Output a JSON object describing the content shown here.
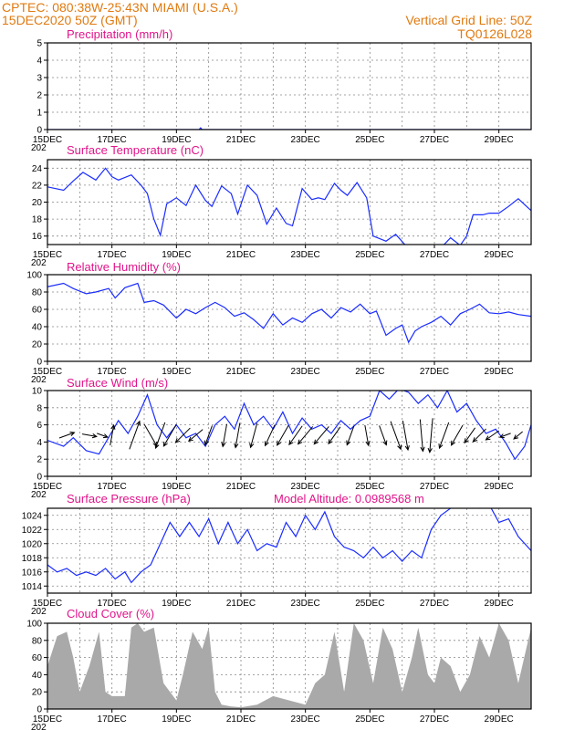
{
  "header": {
    "line1_left": "CPTEC:   080:38W-25:43N   MIAMI (U.S.A.)",
    "line2_left": "15DEC2020 50Z (GMT)",
    "line1_right": "Vertical Grid Line: 50Z",
    "line2_right": "TQ0126L028"
  },
  "colors": {
    "header": "#e07a10",
    "panel_title": "#e0158a",
    "series": "#1a2cff",
    "cloud_fill": "#a9a9a9",
    "wind_arrow": "#000000"
  },
  "x_axis": {
    "tick_labels": [
      "15DEC",
      "17DEC",
      "19DEC",
      "21DEC",
      "23DEC",
      "25DEC",
      "27DEC",
      "29DEC"
    ],
    "range_days": [
      0,
      15
    ],
    "grid": "dotted every day",
    "truncated_year_label": "202"
  },
  "chart_data": [
    {
      "id": "precip",
      "type": "line",
      "title": "Precipitation (mm/h)",
      "ylim": [
        0,
        5
      ],
      "yticks": [
        0,
        1,
        2,
        3,
        4,
        5
      ],
      "x": [
        0,
        4.7,
        4.75,
        4.8,
        15
      ],
      "y": [
        0,
        0,
        0.1,
        0,
        0
      ]
    },
    {
      "id": "temp",
      "type": "line",
      "title": "Surface Temperature (nC)",
      "ylim": [
        15,
        25
      ],
      "yticks": [
        16,
        18,
        20,
        22,
        24
      ],
      "x": [
        0,
        0.5,
        0.8,
        1.1,
        1.5,
        1.8,
        2.0,
        2.2,
        2.6,
        2.9,
        3.1,
        3.3,
        3.5,
        3.7,
        4.0,
        4.3,
        4.6,
        4.9,
        5.1,
        5.4,
        5.7,
        5.9,
        6.2,
        6.5,
        6.8,
        7.1,
        7.4,
        7.6,
        7.9,
        8.2,
        8.4,
        8.6,
        8.9,
        9.1,
        9.3,
        9.6,
        9.9,
        10.1,
        10.5,
        10.8,
        11.2,
        11.5,
        11.9,
        12.2,
        12.5,
        12.8,
        13.0,
        13.2,
        13.5,
        13.7,
        14.0,
        14.3,
        14.6,
        15.0
      ],
      "y": [
        21.8,
        21.4,
        22.5,
        23.5,
        22.6,
        24.0,
        23.0,
        22.6,
        23.2,
        22.0,
        21.0,
        18.0,
        16.1,
        19.8,
        20.5,
        19.6,
        22.0,
        20.2,
        19.5,
        21.9,
        21.0,
        18.6,
        22.0,
        20.8,
        17.4,
        19.3,
        17.5,
        17.2,
        21.6,
        20.3,
        20.5,
        20.3,
        22.2,
        21.4,
        20.8,
        22.3,
        20.5,
        16.0,
        15.4,
        16.2,
        14.5,
        14.0,
        14.2,
        14.6,
        15.8,
        14.9,
        16.0,
        18.5,
        18.5,
        18.7,
        18.7,
        19.5,
        20.4,
        19.0
      ]
    },
    {
      "id": "rh",
      "type": "line",
      "title": "Relative Humidity (%)",
      "ylim": [
        0,
        100
      ],
      "yticks": [
        0,
        20,
        40,
        60,
        80,
        100
      ],
      "x": [
        0,
        0.5,
        0.8,
        1.2,
        1.5,
        1.9,
        2.1,
        2.4,
        2.8,
        3.0,
        3.3,
        3.6,
        4.0,
        4.3,
        4.6,
        4.9,
        5.2,
        5.5,
        5.8,
        6.1,
        6.4,
        6.7,
        7.0,
        7.3,
        7.6,
        7.9,
        8.2,
        8.5,
        8.8,
        9.1,
        9.4,
        9.7,
        10.0,
        10.2,
        10.5,
        10.8,
        11.0,
        11.2,
        11.4,
        11.6,
        11.9,
        12.2,
        12.5,
        12.8,
        13.1,
        13.4,
        13.7,
        14.0,
        14.3,
        14.6,
        15.0
      ],
      "y": [
        86,
        90,
        84,
        78,
        80,
        84,
        73,
        85,
        90,
        68,
        70,
        65,
        50,
        60,
        55,
        62,
        68,
        62,
        52,
        56,
        48,
        38,
        55,
        42,
        50,
        45,
        55,
        60,
        50,
        62,
        57,
        66,
        55,
        58,
        30,
        38,
        42,
        22,
        35,
        40,
        45,
        52,
        42,
        55,
        60,
        66,
        56,
        55,
        57,
        54,
        52
      ]
    },
    {
      "id": "wind",
      "type": "line",
      "title": "Surface Wind (m/s)",
      "ylim": [
        0,
        10
      ],
      "yticks": [
        0,
        2,
        4,
        6,
        8,
        10
      ],
      "x": [
        0,
        0.5,
        0.8,
        1.2,
        1.6,
        2.0,
        2.2,
        2.5,
        2.8,
        3.1,
        3.4,
        3.7,
        4.0,
        4.3,
        4.6,
        4.9,
        5.2,
        5.5,
        5.8,
        6.1,
        6.4,
        6.7,
        7.0,
        7.3,
        7.6,
        7.9,
        8.2,
        8.5,
        8.8,
        9.1,
        9.4,
        9.7,
        10.0,
        10.3,
        10.6,
        10.9,
        11.2,
        11.5,
        11.8,
        12.1,
        12.4,
        12.7,
        13.0,
        13.3,
        13.6,
        13.9,
        14.2,
        14.5,
        14.8,
        15.0
      ],
      "y": [
        4.2,
        3.5,
        4.5,
        3.0,
        2.6,
        5.2,
        6.5,
        5.0,
        7.0,
        9.5,
        6.0,
        4.5,
        6.0,
        4.5,
        5.0,
        3.5,
        6.0,
        7.0,
        5.5,
        8.5,
        6.0,
        7.0,
        5.5,
        7.5,
        5.0,
        6.8,
        5.5,
        6.0,
        5.0,
        6.5,
        5.5,
        6.5,
        7.0,
        10.0,
        9.0,
        10.2,
        9.8,
        8.5,
        9.5,
        8.0,
        10.0,
        7.5,
        8.5,
        6.5,
        5.0,
        5.5,
        4.0,
        2.0,
        3.5,
        6.0
      ]
    },
    {
      "id": "pressure",
      "type": "line",
      "title": "Surface Pressure (hPa)",
      "annotation": "Model Altitude: 0.0989568 m",
      "ylim": [
        1013,
        1025
      ],
      "yticks": [
        1014,
        1016,
        1018,
        1020,
        1022,
        1024
      ],
      "x": [
        0,
        0.3,
        0.6,
        0.9,
        1.2,
        1.5,
        1.8,
        2.1,
        2.4,
        2.6,
        2.9,
        3.2,
        3.5,
        3.8,
        4.1,
        4.4,
        4.7,
        5.0,
        5.3,
        5.6,
        5.9,
        6.2,
        6.5,
        6.8,
        7.1,
        7.4,
        7.7,
        8.0,
        8.3,
        8.6,
        8.9,
        9.2,
        9.5,
        9.8,
        10.1,
        10.4,
        10.7,
        11.0,
        11.3,
        11.6,
        11.9,
        12.2,
        12.5,
        12.8,
        13.1,
        13.4,
        13.7,
        14.0,
        14.3,
        14.6,
        15.0
      ],
      "y": [
        1017,
        1016,
        1016.5,
        1015.5,
        1016,
        1015.5,
        1016.5,
        1015,
        1016,
        1014.5,
        1016,
        1017,
        1020,
        1023,
        1021,
        1023,
        1021,
        1023.5,
        1020,
        1023,
        1020,
        1022,
        1019,
        1020,
        1019.5,
        1023,
        1021,
        1024,
        1022,
        1024.5,
        1021,
        1019.5,
        1019,
        1018,
        1019.5,
        1018,
        1019,
        1017.5,
        1019,
        1018,
        1022,
        1024,
        1025,
        1027,
        1026,
        1025,
        1025.5,
        1023,
        1023.5,
        1021,
        1019
      ]
    },
    {
      "id": "cloud",
      "type": "area",
      "title": "Cloud Cover (%)",
      "ylim": [
        0,
        100
      ],
      "yticks": [
        0,
        20,
        40,
        60,
        80,
        100
      ],
      "x": [
        0,
        0.3,
        0.6,
        0.8,
        1.0,
        1.3,
        1.6,
        1.8,
        2.0,
        2.2,
        2.4,
        2.6,
        2.8,
        3.0,
        3.3,
        3.6,
        4.0,
        4.2,
        4.5,
        4.8,
        5.0,
        5.2,
        5.4,
        5.7,
        6.0,
        6.5,
        7.0,
        7.5,
        8.0,
        8.3,
        8.6,
        8.9,
        9.2,
        9.5,
        9.8,
        10.1,
        10.4,
        10.7,
        11.0,
        11.3,
        11.5,
        11.8,
        12.0,
        12.2,
        12.5,
        12.8,
        13.1,
        13.4,
        13.7,
        14.0,
        14.3,
        14.6,
        15.0
      ],
      "y": [
        50,
        85,
        90,
        60,
        20,
        50,
        90,
        20,
        15,
        15,
        15,
        95,
        100,
        90,
        95,
        30,
        10,
        40,
        90,
        70,
        95,
        20,
        5,
        3,
        2,
        5,
        15,
        10,
        5,
        30,
        40,
        90,
        20,
        100,
        80,
        30,
        95,
        70,
        20,
        60,
        95,
        40,
        30,
        60,
        50,
        20,
        40,
        85,
        60,
        100,
        80,
        30,
        95
      ]
    }
  ],
  "wind_arrows": {
    "description_units": "direction the wind blows toward, degrees clockwise from north",
    "x": [
      0.6,
      1.3,
      1.7,
      2.0,
      2.7,
      3.2,
      3.5,
      3.8,
      4.2,
      4.6,
      5.0,
      5.5,
      5.9,
      6.4,
      6.9,
      7.3,
      7.7,
      8.0,
      8.5,
      8.9,
      9.4,
      9.9,
      10.4,
      10.8,
      11.1,
      11.6,
      11.9,
      12.3,
      12.7,
      13.1,
      13.4,
      13.8,
      14.2,
      14.6
    ],
    "speed": [
      3.5,
      3.2,
      2.5,
      4.5,
      6.5,
      5.5,
      6.0,
      5.5,
      4.5,
      4.0,
      4.5,
      5.0,
      5.5,
      5.5,
      5.0,
      5.0,
      5.0,
      5.0,
      5.0,
      4.5,
      4.5,
      4.5,
      4.5,
      6.5,
      6.5,
      7.0,
      7.5,
      6.0,
      5.0,
      4.0,
      4.0,
      3.5,
      2.5,
      2.5
    ],
    "dir": [
      70,
      100,
      110,
      10,
      20,
      150,
      200,
      210,
      225,
      230,
      200,
      190,
      190,
      195,
      205,
      210,
      215,
      220,
      220,
      215,
      200,
      170,
      160,
      160,
      170,
      175,
      185,
      200,
      210,
      215,
      225,
      235,
      250,
      230
    ]
  }
}
